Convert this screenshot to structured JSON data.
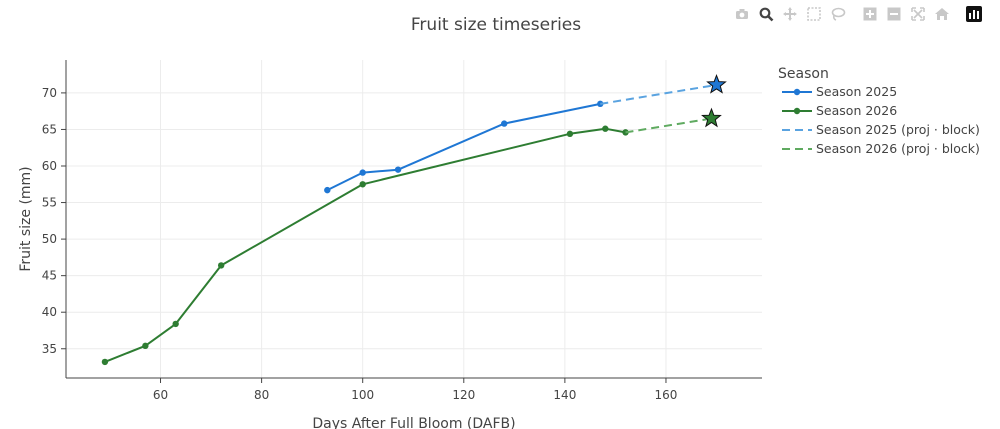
{
  "toolbar": {
    "buttons": [
      {
        "name": "camera-icon",
        "icon": "camera"
      },
      {
        "name": "zoom-icon",
        "icon": "zoom",
        "active": true
      },
      {
        "name": "pan-icon",
        "icon": "pan"
      },
      {
        "name": "box-select-icon",
        "icon": "box-select"
      },
      {
        "name": "lasso-select-icon",
        "icon": "lasso"
      },
      {
        "name": "zoom-in-icon",
        "icon": "zoom-in"
      },
      {
        "name": "zoom-out-icon",
        "icon": "zoom-out"
      },
      {
        "name": "autoscale-icon",
        "icon": "autoscale"
      },
      {
        "name": "reset-axes-icon",
        "icon": "home"
      },
      {
        "name": "plotly-logo-icon",
        "icon": "plotly-logo"
      }
    ]
  },
  "chart_data": {
    "type": "line",
    "title": "Fruit size timeseries",
    "xlabel": "Days After Full Bloom (DAFB)",
    "ylabel": "Fruit size (mm)",
    "xlim": [
      41.3,
      179
    ],
    "ylim": [
      31,
      74.5
    ],
    "x_ticks": [
      60,
      80,
      100,
      120,
      140,
      160
    ],
    "y_ticks": [
      35,
      40,
      45,
      50,
      55,
      60,
      65,
      70
    ],
    "grid": true,
    "legend": {
      "title": "Season",
      "placement": "right"
    },
    "series": [
      {
        "name": "Season 2025",
        "color": "#1f77d4",
        "dash": "solid",
        "markers": true,
        "x": [
          93,
          100,
          107,
          128,
          147
        ],
        "y": [
          56.7,
          59.1,
          59.5,
          65.8,
          68.5
        ]
      },
      {
        "name": "Season 2026",
        "color": "#2e7d32",
        "dash": "solid",
        "markers": true,
        "x": [
          49,
          57,
          63,
          72,
          100,
          141,
          148,
          152
        ],
        "y": [
          33.2,
          35.4,
          38.4,
          46.4,
          57.5,
          64.4,
          65.1,
          64.6
        ]
      },
      {
        "name": "Season 2025 (proj · block)",
        "color": "#5aa3e0",
        "dash": "dash",
        "markers": false,
        "x": [
          147,
          170
        ],
        "y": [
          68.5,
          71.1
        ]
      },
      {
        "name": "Season 2026 (proj · block)",
        "color": "#5faa60",
        "dash": "dash",
        "markers": false,
        "x": [
          152,
          169
        ],
        "y": [
          64.6,
          66.5
        ]
      }
    ],
    "stars": [
      {
        "series": "Season 2025 (proj · block)",
        "x": 170,
        "y": 71.1,
        "color": "#1f77d4"
      },
      {
        "series": "Season 2026 (proj · block)",
        "x": 169,
        "y": 66.5,
        "color": "#2e7d32"
      }
    ]
  }
}
